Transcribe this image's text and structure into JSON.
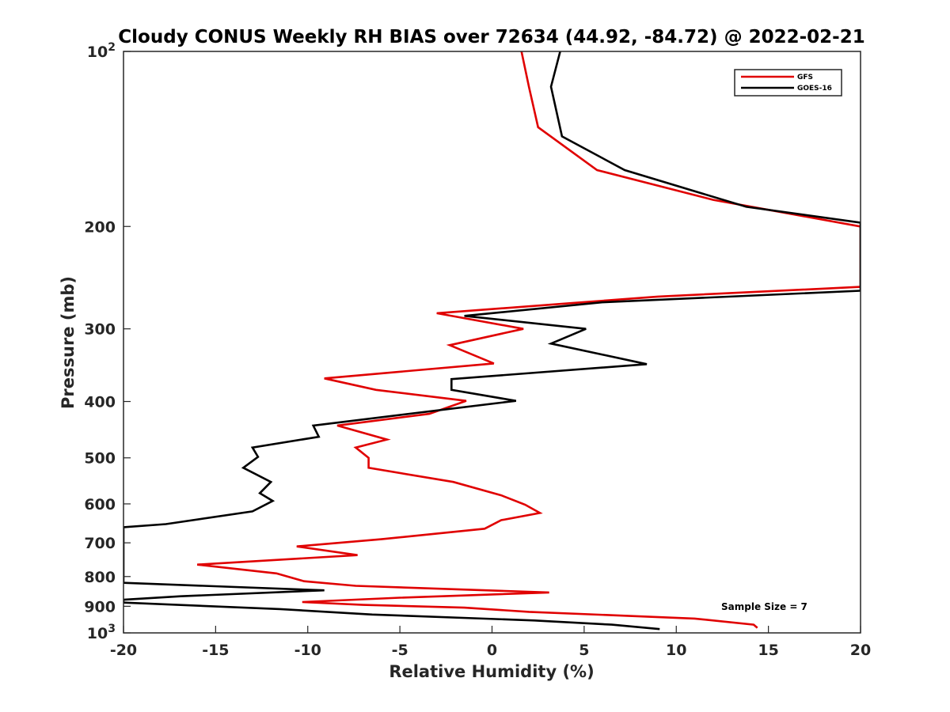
{
  "chart_data": {
    "type": "line",
    "title": "Cloudy CONUS Weekly RH BIAS over 72634 (44.92, -84.72) @ 2022-02-21",
    "xlabel": "Relative Humidity (%)",
    "ylabel": "Pressure (mb)",
    "xlim": [
      -20,
      20
    ],
    "ylim": [
      100,
      1000
    ],
    "yscale": "log",
    "y_reversed": true,
    "x_ticks": [
      "-20",
      "-15",
      "-10",
      "-5",
      "0",
      "5",
      "10",
      "15",
      "20"
    ],
    "y_ticks": [
      {
        "value": 100,
        "base": "10",
        "exp": "2"
      },
      {
        "value": 200,
        "label": "200"
      },
      {
        "value": 300,
        "label": "300"
      },
      {
        "value": 400,
        "label": "400"
      },
      {
        "value": 500,
        "label": "500"
      },
      {
        "value": 600,
        "label": "600"
      },
      {
        "value": 700,
        "label": "700"
      },
      {
        "value": 800,
        "label": "800"
      },
      {
        "value": 900,
        "label": "900"
      },
      {
        "value": 1000,
        "base": "10",
        "exp": "3"
      }
    ],
    "grid": false,
    "legend_position": "top-right",
    "annotation": "Sample Size = 7",
    "series": [
      {
        "name": "GFS",
        "color": "#e00000",
        "points": [
          [
            1.6,
            100
          ],
          [
            2.0,
            115
          ],
          [
            2.5,
            135
          ],
          [
            5.7,
            160
          ],
          [
            12.0,
            180
          ],
          [
            20.0,
            200
          ],
          [
            20.0,
            254
          ],
          [
            9.0,
            264
          ],
          [
            -3.0,
            282
          ],
          [
            1.7,
            300
          ],
          [
            -2.3,
            320
          ],
          [
            0.1,
            344
          ],
          [
            -9.1,
            365
          ],
          [
            -6.3,
            382
          ],
          [
            -1.4,
            399
          ],
          [
            -3.4,
            420
          ],
          [
            -8.4,
            440
          ],
          [
            -5.7,
            465
          ],
          [
            -7.4,
            480
          ],
          [
            -6.7,
            500
          ],
          [
            -6.7,
            520
          ],
          [
            -2.1,
            550
          ],
          [
            0.5,
            580
          ],
          [
            1.8,
            602
          ],
          [
            2.6,
            622
          ],
          [
            0.5,
            640
          ],
          [
            -0.4,
            662
          ],
          [
            -6.0,
            690
          ],
          [
            -10.6,
            710
          ],
          [
            -7.3,
            735
          ],
          [
            -16.0,
            763
          ],
          [
            -11.7,
            790
          ],
          [
            -10.2,
            815
          ],
          [
            -7.4,
            830
          ],
          [
            3.1,
            852
          ],
          [
            -5.0,
            870
          ],
          [
            -10.3,
            885
          ],
          [
            -7.0,
            895
          ],
          [
            -1.5,
            905
          ],
          [
            2.0,
            920
          ],
          [
            11.0,
            945
          ],
          [
            14.2,
            968
          ],
          [
            14.4,
            980
          ]
        ]
      },
      {
        "name": "GOES-16",
        "color": "#000000",
        "points": [
          [
            3.7,
            100
          ],
          [
            3.2,
            115
          ],
          [
            3.8,
            140
          ],
          [
            7.2,
            160
          ],
          [
            13.8,
            185
          ],
          [
            20.0,
            197
          ],
          [
            20.0,
            258
          ],
          [
            6.0,
            270
          ],
          [
            -1.5,
            285
          ],
          [
            5.1,
            300
          ],
          [
            3.2,
            318
          ],
          [
            8.4,
            345
          ],
          [
            -2.2,
            366
          ],
          [
            -2.2,
            382
          ],
          [
            1.3,
            399
          ],
          [
            -9.7,
            440
          ],
          [
            -9.4,
            460
          ],
          [
            -13.0,
            480
          ],
          [
            -12.7,
            498
          ],
          [
            -13.5,
            520
          ],
          [
            -12.0,
            550
          ],
          [
            -12.6,
            575
          ],
          [
            -11.9,
            593
          ],
          [
            -13.0,
            618
          ],
          [
            -17.7,
            650
          ],
          [
            -20.0,
            658
          ],
          [
            -20.0,
            820
          ],
          [
            -9.1,
            845
          ],
          [
            -16.9,
            865
          ],
          [
            -20.0,
            877
          ],
          [
            -20.0,
            887
          ],
          [
            -11.5,
            910
          ],
          [
            -6.5,
            930
          ],
          [
            2.3,
            952
          ],
          [
            6.5,
            968
          ],
          [
            9.1,
            985
          ]
        ]
      }
    ]
  }
}
